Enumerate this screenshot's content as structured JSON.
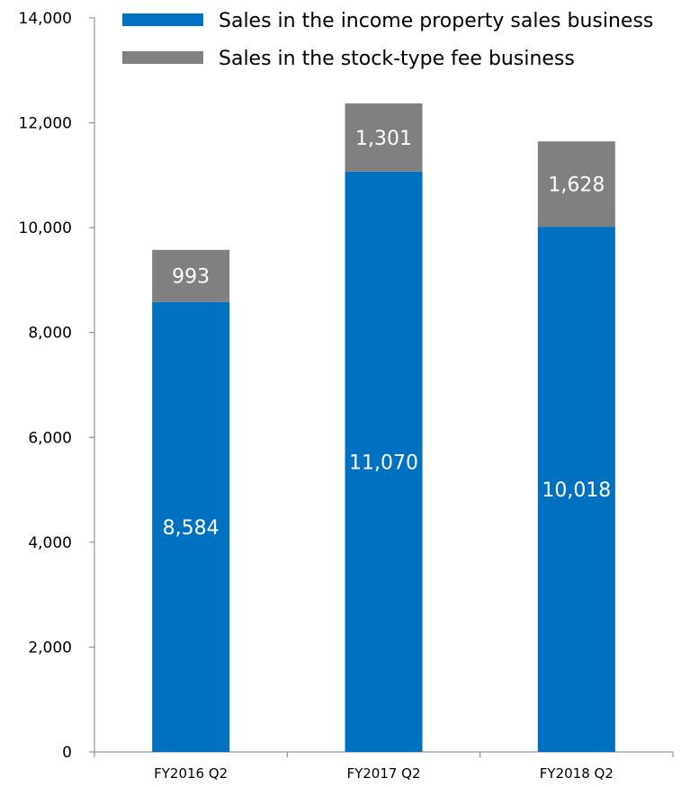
{
  "chart_data": {
    "type": "bar",
    "stacked": true,
    "categories": [
      "FY2016 Q2",
      "FY2017 Q2",
      "FY2018 Q2"
    ],
    "series": [
      {
        "name": "Sales in the income property sales business",
        "values": [
          8584,
          11070,
          10018
        ],
        "labels": [
          "8,584",
          "11,070",
          "10,018"
        ],
        "color": "#0070C0"
      },
      {
        "name": "Sales in the stock-type fee business",
        "values": [
          993,
          1301,
          1628
        ],
        "labels": [
          "993",
          "1,301",
          "1,628"
        ],
        "color": "#808080"
      }
    ],
    "ylim": [
      0,
      14000
    ],
    "yticks": [
      0,
      2000,
      4000,
      6000,
      8000,
      10000,
      12000,
      14000
    ],
    "ytick_labels": [
      "0",
      "2,000",
      "4,000",
      "6,000",
      "8,000",
      "10,000",
      "12,000",
      "14,000"
    ],
    "grid": false,
    "legend_position": "top"
  }
}
